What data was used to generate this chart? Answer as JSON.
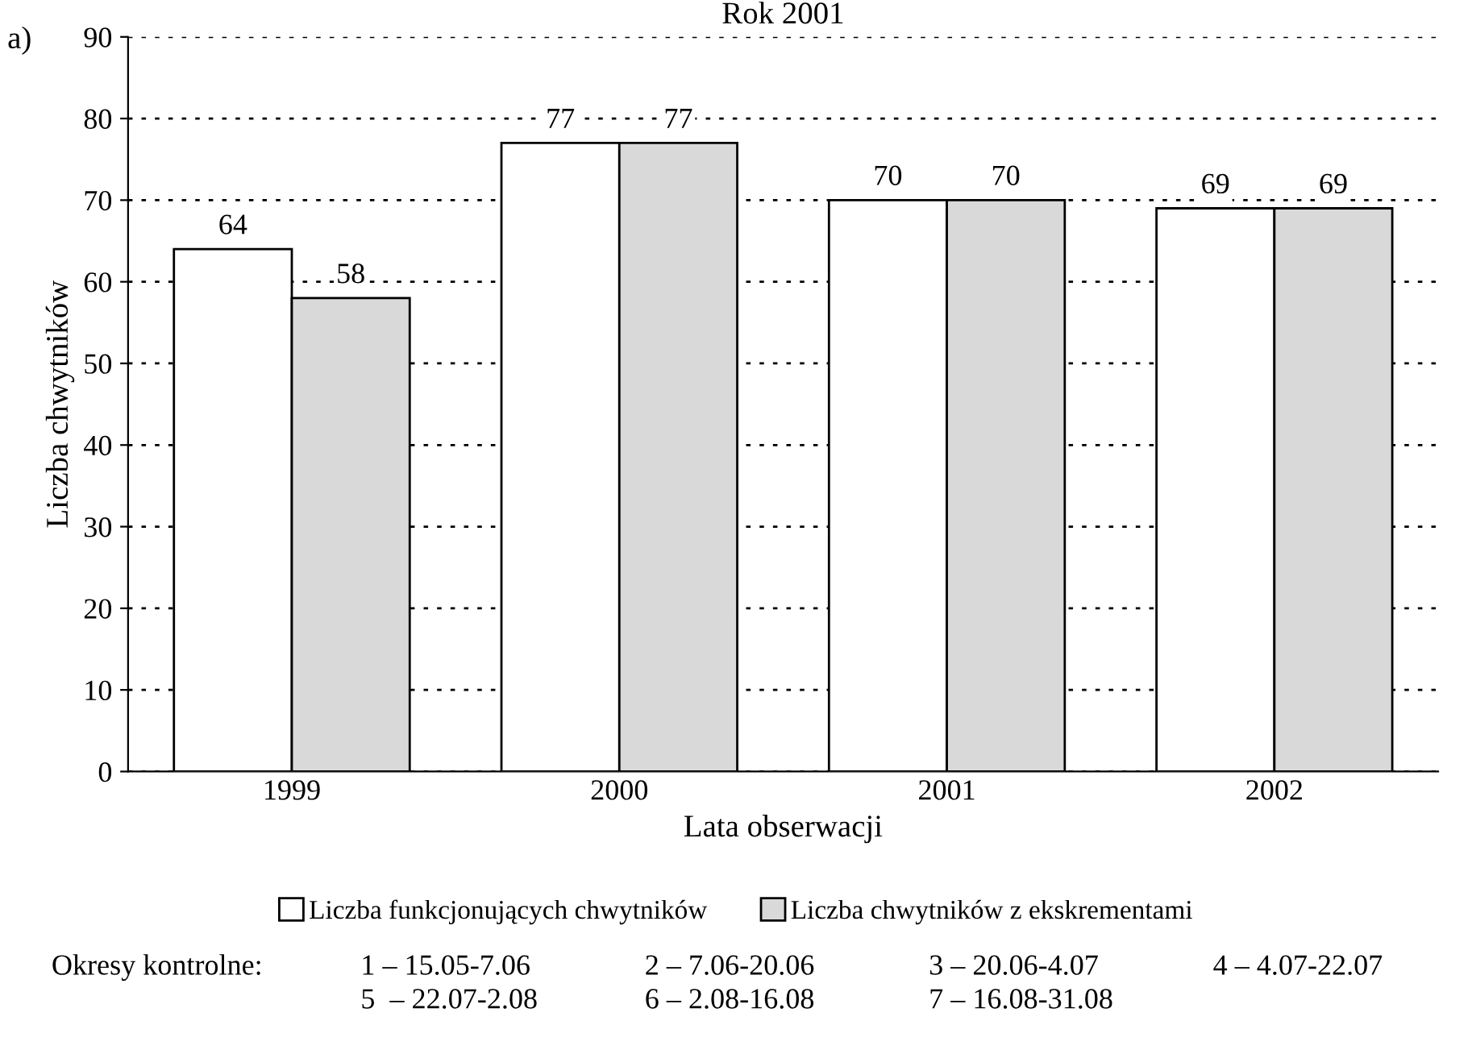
{
  "chart_data": {
    "type": "bar",
    "title": "Rok 2001",
    "xlabel": "Lata obserwacji",
    "ylabel": "Liczba chwytników",
    "categories": [
      "1999",
      "2000",
      "2001",
      "2002"
    ],
    "series": [
      {
        "name": "Liczba funkcjonujących chwytników",
        "color": "#ffffff",
        "values": [
          64,
          77,
          70,
          69
        ]
      },
      {
        "name": "Liczba chwytników z ekskrementami",
        "color": "#d9d9d9",
        "values": [
          58,
          77,
          70,
          69
        ]
      }
    ],
    "ylim": [
      0,
      90
    ],
    "yticks": [
      0,
      10,
      20,
      30,
      40,
      50,
      60,
      70,
      80,
      90
    ],
    "grid": "y",
    "legend": "bottom",
    "data_labels": true,
    "annotations": [
      "a)",
      "Okresy kontrolne:",
      "1 – 15.05-7.06",
      "2 – 7.06-20.06",
      "3 – 20.06-4.07",
      "4 – 4.07-22.07",
      "5  – 22.07-2.08",
      "6 – 2.08-16.08",
      "7 – 16.08-31.08"
    ]
  }
}
